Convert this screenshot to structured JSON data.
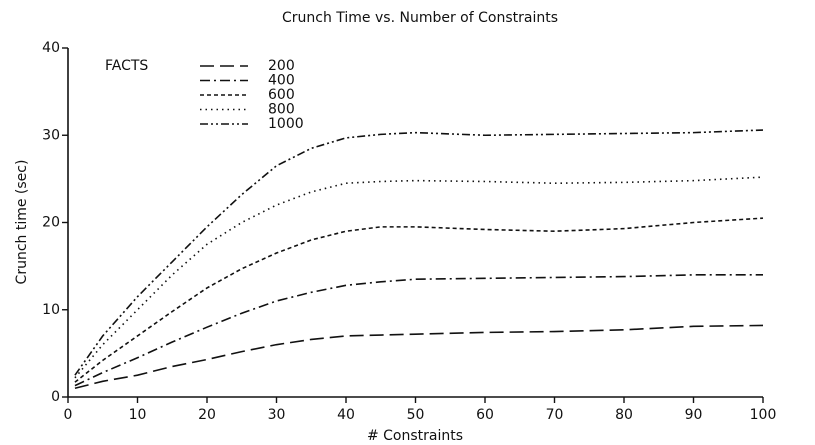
{
  "chart_data": {
    "type": "line",
    "title": "Crunch Time vs. Number of Constraints",
    "xlabel": "# Constraints",
    "ylabel": "Crunch time (sec)",
    "legend_title": "FACTS",
    "legend": "upper left",
    "x": [
      1,
      5,
      10,
      15,
      20,
      25,
      30,
      35,
      40,
      45,
      50,
      60,
      70,
      80,
      90,
      100
    ],
    "xlim": [
      0,
      100
    ],
    "xticks": [
      0,
      10,
      20,
      30,
      40,
      50,
      60,
      70,
      80,
      90,
      100
    ],
    "ylim": [
      0,
      40
    ],
    "yticks": [
      0,
      10,
      20,
      30,
      40
    ],
    "series": [
      {
        "name": "200",
        "color": "#111111",
        "dash": "14 6",
        "values": [
          1,
          1.8,
          2.5,
          3.5,
          4.3,
          5.2,
          6,
          6.6,
          7,
          7.1,
          7.2,
          7.4,
          7.5,
          7.7,
          8.1,
          8.2
        ]
      },
      {
        "name": "400",
        "color": "#111111",
        "dash": "10 4 2 4",
        "values": [
          1.3,
          2.8,
          4.5,
          6.3,
          8,
          9.6,
          11,
          12,
          12.8,
          13.2,
          13.5,
          13.6,
          13.7,
          13.8,
          14,
          14
        ]
      },
      {
        "name": "600",
        "color": "#111111",
        "dash": "4 3",
        "values": [
          1.7,
          4.2,
          7,
          9.8,
          12.5,
          14.7,
          16.5,
          18,
          19,
          19.5,
          19.5,
          19.2,
          19,
          19.3,
          20,
          20.5
        ]
      },
      {
        "name": "800",
        "color": "#111111",
        "dash": "1.5 4",
        "values": [
          2.2,
          6,
          10,
          14,
          17.5,
          20,
          22,
          23.5,
          24.5,
          24.7,
          24.8,
          24.7,
          24.5,
          24.6,
          24.8,
          25.2
        ]
      },
      {
        "name": "1000",
        "color": "#111111",
        "dash": "8 3 2 3 2 3",
        "values": [
          2.5,
          7,
          11.5,
          15.5,
          19.5,
          23.2,
          26.5,
          28.5,
          29.7,
          30.1,
          30.3,
          30,
          30.1,
          30.2,
          30.3,
          30.6
        ]
      }
    ]
  }
}
